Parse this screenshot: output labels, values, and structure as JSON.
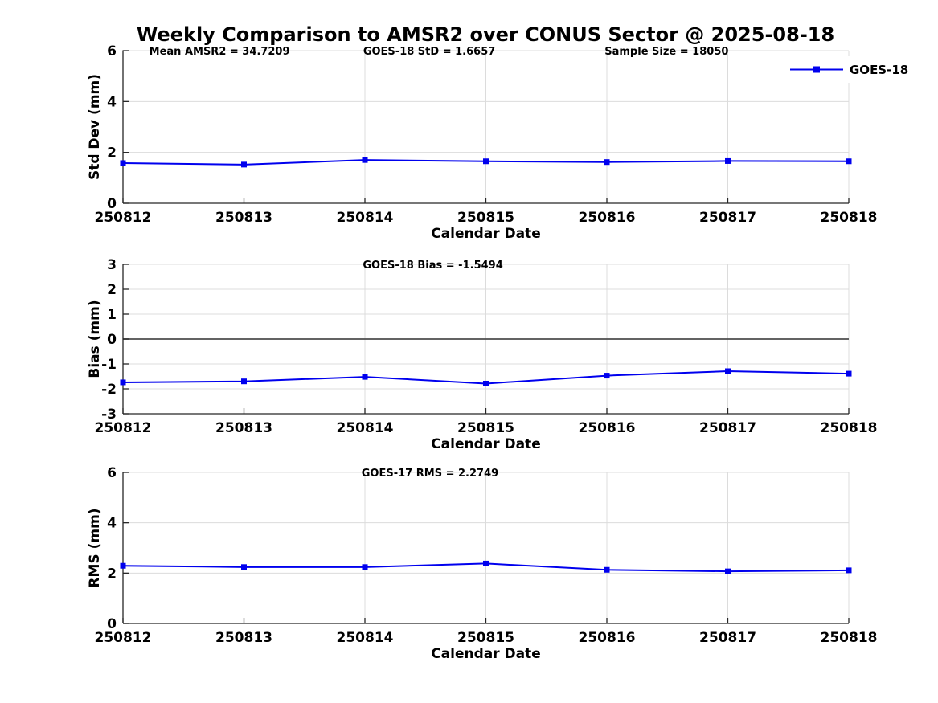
{
  "figure": {
    "title": "Weekly Comparison to AMSR2 over CONUS Sector @ 2025-08-18",
    "colors": {
      "line": "#0000EE",
      "grid": "#DCDCDC",
      "axis": "#262626",
      "zero_line": "#4D4D4D",
      "text": "#000000",
      "background": "#FFFFFF"
    }
  },
  "chart_data": [
    {
      "type": "line",
      "panel": "std-dev",
      "annotations": [
        "Mean AMSR2 = 34.7209",
        "GOES-18 StD = 1.6657",
        "Sample Size = 18050"
      ],
      "categories": [
        "250812",
        "250813",
        "250814",
        "250815",
        "250816",
        "250817",
        "250818"
      ],
      "series": [
        {
          "name": "GOES-18",
          "values": [
            1.58,
            1.52,
            1.7,
            1.65,
            1.62,
            1.66,
            1.65
          ]
        }
      ],
      "xlabel": "Calendar Date",
      "ylabel": "Std Dev (mm)",
      "ylim": [
        0,
        6
      ],
      "yticks": [
        0,
        2,
        4,
        6
      ],
      "grid": true,
      "zero_line": false,
      "legend": {
        "label": "GOES-18",
        "position": "top-right"
      }
    },
    {
      "type": "line",
      "panel": "bias",
      "annotations": [
        "GOES-18 Bias  = -1.5494"
      ],
      "categories": [
        "250812",
        "250813",
        "250814",
        "250815",
        "250816",
        "250817",
        "250818"
      ],
      "series": [
        {
          "name": "GOES-18",
          "values": [
            -1.74,
            -1.7,
            -1.52,
            -1.79,
            -1.47,
            -1.29,
            -1.39
          ]
        }
      ],
      "xlabel": "Calendar Date",
      "ylabel": "Bias (mm)",
      "ylim": [
        -3,
        3
      ],
      "yticks": [
        -3,
        -2,
        -1,
        0,
        1,
        2,
        3
      ],
      "grid": true,
      "zero_line": true,
      "legend": null
    },
    {
      "type": "line",
      "panel": "rms",
      "annotations": [
        "GOES-17 RMS = 2.2749"
      ],
      "categories": [
        "250812",
        "250813",
        "250814",
        "250815",
        "250816",
        "250817",
        "250818"
      ],
      "series": [
        {
          "name": "GOES-18",
          "values": [
            2.29,
            2.24,
            2.24,
            2.38,
            2.13,
            2.07,
            2.11
          ]
        }
      ],
      "xlabel": "Calendar Date",
      "ylabel": "RMS (mm)",
      "ylim": [
        0,
        6
      ],
      "yticks": [
        0,
        2,
        4,
        6
      ],
      "grid": true,
      "zero_line": false,
      "legend": null
    }
  ]
}
